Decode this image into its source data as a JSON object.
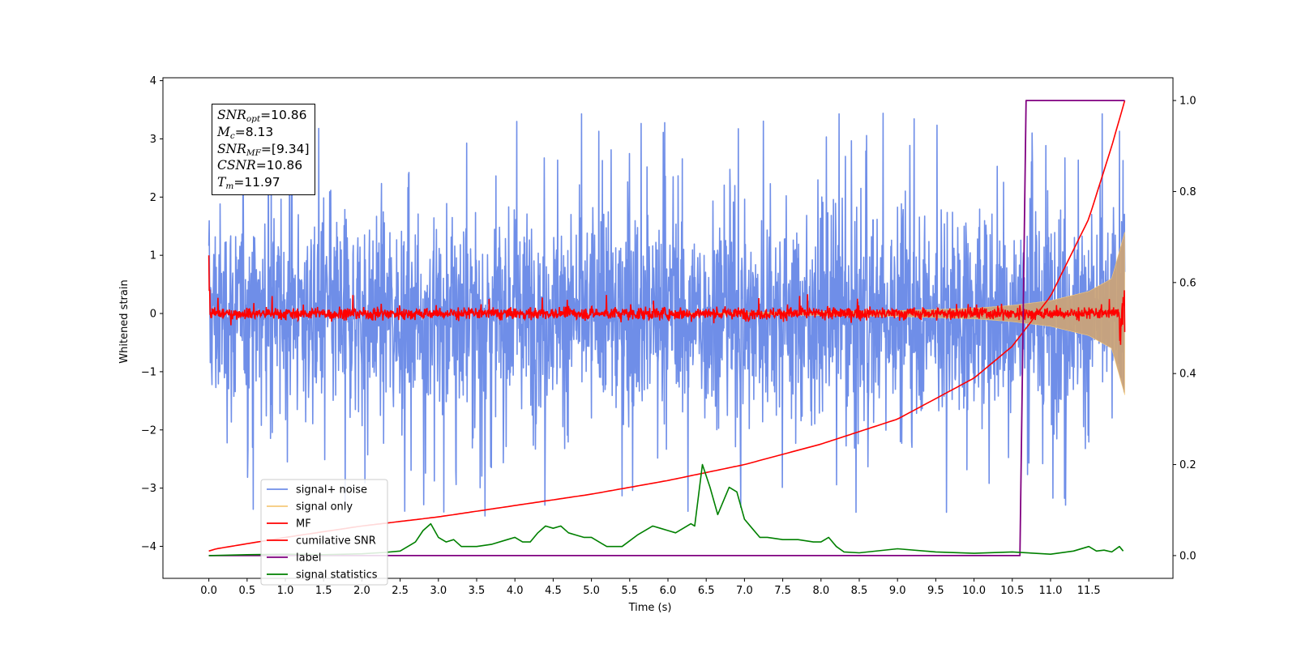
{
  "chart_data": {
    "type": "line",
    "xlabel": "Time (s)",
    "ylabel_left": "Whitened strain",
    "ylabel_right": "",
    "xlim": [
      -0.6,
      12.6
    ],
    "ylim_left": [
      -4.55,
      4.05
    ],
    "ylim_right": [
      -0.05,
      1.05
    ],
    "x_ticks": [
      "0.0",
      "0.5",
      "1.0",
      "1.5",
      "2.0",
      "2.5",
      "3.0",
      "3.5",
      "4.0",
      "4.5",
      "5.0",
      "5.5",
      "6.0",
      "6.5",
      "7.0",
      "7.5",
      "8.0",
      "8.5",
      "9.0",
      "9.5",
      "10.0",
      "10.5",
      "11.0",
      "11.5"
    ],
    "y_ticks_left": [
      "4",
      "3",
      "2",
      "1",
      "0",
      "−1",
      "−2",
      "−3",
      "−4"
    ],
    "y_ticks_right": [
      "1.0",
      "0.8",
      "0.6",
      "0.4",
      "0.2",
      "0.0"
    ],
    "legend_position": "lower-left",
    "series": [
      {
        "name": "signal+ noise",
        "axis": "left",
        "color": "#6f8ee8",
        "x_range": [
          0.0,
          11.97
        ],
        "envelope_typical": [
          -1.3,
          1.3
        ],
        "max": 3.5,
        "min": -3.6
      },
      {
        "name": "signal only",
        "axis": "left",
        "color": "#f5c97a",
        "x": [
          9.0,
          10.0,
          10.5,
          11.0,
          11.5,
          11.8,
          11.97
        ],
        "amplitude": [
          0.05,
          0.09,
          0.14,
          0.22,
          0.38,
          0.6,
          1.4
        ]
      },
      {
        "name": "MF",
        "axis": "left",
        "color": "#ff0000",
        "x_range": [
          0.0,
          11.97
        ],
        "envelope_typical": [
          -0.2,
          0.25
        ],
        "start_value": 1.0
      },
      {
        "name": "cumilative SNR",
        "axis": "right",
        "color": "#ff0000",
        "x": [
          0.0,
          0.1,
          1.0,
          2.0,
          3.0,
          4.0,
          5.0,
          6.0,
          7.0,
          8.0,
          9.0,
          10.0,
          10.5,
          11.0,
          11.5,
          11.8,
          11.97
        ],
        "y": [
          0.01,
          0.015,
          0.04,
          0.065,
          0.085,
          0.11,
          0.135,
          0.165,
          0.2,
          0.245,
          0.3,
          0.39,
          0.46,
          0.57,
          0.74,
          0.9,
          1.0
        ]
      },
      {
        "name": "label",
        "axis": "right",
        "color": "#800080",
        "x": [
          0.0,
          10.6,
          10.68,
          11.97
        ],
        "y": [
          0.0,
          0.0,
          1.0,
          1.0
        ]
      },
      {
        "name": "signal statistics",
        "axis": "right",
        "color": "#008000",
        "x": [
          0.0,
          0.5,
          1.0,
          1.5,
          2.0,
          2.3,
          2.5,
          2.7,
          2.8,
          2.9,
          3.0,
          3.1,
          3.2,
          3.3,
          3.5,
          3.7,
          3.9,
          4.0,
          4.1,
          4.2,
          4.3,
          4.4,
          4.5,
          4.6,
          4.7,
          4.8,
          4.9,
          5.0,
          5.1,
          5.2,
          5.4,
          5.6,
          5.8,
          5.9,
          6.0,
          6.1,
          6.2,
          6.3,
          6.35,
          6.45,
          6.55,
          6.65,
          6.7,
          6.8,
          6.9,
          7.0,
          7.1,
          7.2,
          7.3,
          7.5,
          7.7,
          7.9,
          8.0,
          8.1,
          8.2,
          8.3,
          8.5,
          9.0,
          9.5,
          10.0,
          10.5,
          11.0,
          11.3,
          11.5,
          11.6,
          11.7,
          11.8,
          11.9,
          11.95
        ],
        "y": [
          0.0,
          0.002,
          0.003,
          0.002,
          0.004,
          0.007,
          0.01,
          0.03,
          0.055,
          0.07,
          0.04,
          0.03,
          0.035,
          0.02,
          0.02,
          0.025,
          0.035,
          0.04,
          0.03,
          0.03,
          0.05,
          0.065,
          0.06,
          0.065,
          0.05,
          0.045,
          0.04,
          0.04,
          0.03,
          0.02,
          0.02,
          0.045,
          0.065,
          0.06,
          0.055,
          0.05,
          0.06,
          0.07,
          0.065,
          0.2,
          0.15,
          0.09,
          0.11,
          0.15,
          0.14,
          0.08,
          0.06,
          0.04,
          0.04,
          0.035,
          0.035,
          0.03,
          0.03,
          0.04,
          0.02,
          0.008,
          0.006,
          0.015,
          0.008,
          0.005,
          0.008,
          0.003,
          0.01,
          0.02,
          0.01,
          0.012,
          0.008,
          0.02,
          0.01
        ]
      }
    ],
    "annotation": {
      "lines": [
        {
          "symbol": "SNR",
          "sub": "opt",
          "value": "=10.86"
        },
        {
          "symbol": "M",
          "sub": "c",
          "value": "=8.13"
        },
        {
          "symbol": "SNR",
          "sub": "MF",
          "value": "=[9.34]"
        },
        {
          "symbol": "CSNR",
          "sub": "",
          "value": "=10.86"
        },
        {
          "symbol": "T",
          "sub": "m",
          "value": "=11.97"
        }
      ]
    }
  }
}
